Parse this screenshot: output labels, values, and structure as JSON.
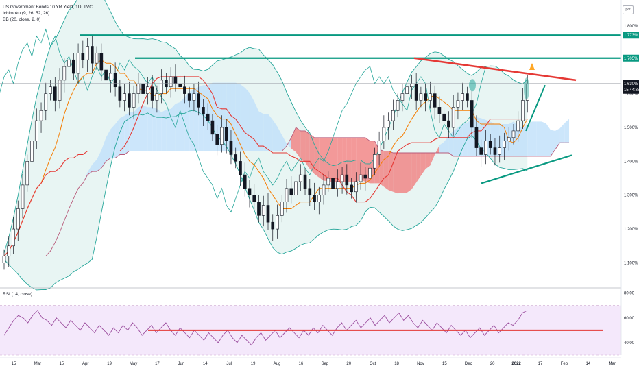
{
  "header": {
    "title": "US Government Bonds 10 YR Yield, 1D, TVC",
    "indicator_ichimoku": "Ichimoku (9, 26, 52, 26)",
    "indicator_bb": "BB (20, close, 2, 0)",
    "rsi_label": "RSI (14, close)",
    "pct_button": "pct"
  },
  "colors": {
    "candle": "#131722",
    "teal_level": "#089981",
    "red_trend": "#e53935",
    "cloud_green": "#bfe0fa",
    "cloud_red": "#f08080",
    "bb_line": "#26a69a",
    "bb_fill": "#e6f4f2",
    "tenkan": "#f57c00",
    "kijun": "#e53935",
    "chikou": "#26a69a",
    "lead_b": "#b85a7a",
    "rsi_line": "#9c4f9f",
    "rsi_band": "#f4e8fb"
  },
  "chart_data": [
    {
      "type": "candlestick",
      "title": "US Government Bonds 10 YR Yield, 1D, TVC",
      "y_axis_labels": [
        "1.800%",
        "1.700%",
        "1.600%",
        "1.500%",
        "1.400%",
        "1.300%",
        "1.200%",
        "1.100%"
      ],
      "ylim": [
        1.03,
        1.82
      ],
      "x_axis_labels": [
        "15",
        "Mar",
        "15",
        "Apr",
        "19",
        "May",
        "17",
        "Jun",
        "14",
        "Jul",
        "19",
        "Aug",
        "16",
        "Sep",
        "20",
        "Oct",
        "18",
        "Nov",
        "15",
        "Dec",
        "20",
        "2022",
        "17",
        "Feb",
        "14",
        "Mar"
      ],
      "price_tags": [
        {
          "label": "1.773%",
          "value": 1.773
        },
        {
          "label": "1.705%",
          "value": 1.705
        },
        {
          "label": "1.630%",
          "value": 1.63,
          "extra": "15:44:38"
        }
      ],
      "horizontal_levels": [
        1.773,
        1.705,
        1.63
      ],
      "series": [
        {
          "name": "close",
          "values": [
            1.12,
            1.15,
            1.2,
            1.26,
            1.33,
            1.4,
            1.46,
            1.52,
            1.55,
            1.6,
            1.62,
            1.58,
            1.64,
            1.68,
            1.7,
            1.66,
            1.72,
            1.7,
            1.74,
            1.69,
            1.72,
            1.67,
            1.64,
            1.66,
            1.62,
            1.58,
            1.6,
            1.56,
            1.6,
            1.63,
            1.6,
            1.62,
            1.58,
            1.6,
            1.64,
            1.62,
            1.65,
            1.63,
            1.62,
            1.6,
            1.58,
            1.6,
            1.56,
            1.54,
            1.52,
            1.48,
            1.45,
            1.5,
            1.46,
            1.42,
            1.4,
            1.36,
            1.32,
            1.3,
            1.28,
            1.24,
            1.27,
            1.22,
            1.2,
            1.24,
            1.28,
            1.32,
            1.3,
            1.34,
            1.36,
            1.32,
            1.3,
            1.28,
            1.3,
            1.33,
            1.35,
            1.32,
            1.34,
            1.36,
            1.33,
            1.31,
            1.34,
            1.36,
            1.35,
            1.38,
            1.42,
            1.46,
            1.5,
            1.52,
            1.55,
            1.58,
            1.6,
            1.62,
            1.63,
            1.58,
            1.6,
            1.58,
            1.6,
            1.56,
            1.54,
            1.52,
            1.5,
            1.56,
            1.58,
            1.6,
            1.58,
            1.5,
            1.44,
            1.42,
            1.46,
            1.44,
            1.42,
            1.44,
            1.46,
            1.47,
            1.49,
            1.52,
            1.58,
            1.63
          ]
        }
      ]
    },
    {
      "type": "line",
      "title": "RSI (14, close)",
      "y_axis_labels": [
        "80.00",
        "60.00",
        "40.00"
      ],
      "ylim": [
        30,
        82
      ],
      "bands": [
        30,
        70
      ],
      "reference_line": 50,
      "series": [
        {
          "name": "RSI",
          "values": [
            46,
            52,
            58,
            62,
            60,
            56,
            62,
            66,
            60,
            58,
            54,
            60,
            56,
            52,
            58,
            54,
            50,
            56,
            52,
            48,
            54,
            50,
            46,
            52,
            48,
            54,
            50,
            56,
            52,
            46,
            50,
            54,
            48,
            52,
            56,
            50,
            46,
            52,
            48,
            44,
            50,
            46,
            42,
            48,
            44,
            40,
            46,
            50,
            44,
            40,
            46,
            42,
            38,
            44,
            48,
            42,
            46,
            50,
            44,
            48,
            52,
            48,
            44,
            50,
            46,
            52,
            48,
            54,
            50,
            46,
            52,
            56,
            50,
            54,
            58,
            52,
            56,
            60,
            54,
            58,
            62,
            56,
            60,
            64,
            58,
            62,
            56,
            52,
            58,
            54,
            50,
            56,
            52,
            48,
            54,
            50,
            46,
            50,
            44,
            48,
            52,
            46,
            50,
            54,
            48,
            52,
            56,
            54,
            58,
            64,
            66
          ]
        }
      ]
    }
  ]
}
